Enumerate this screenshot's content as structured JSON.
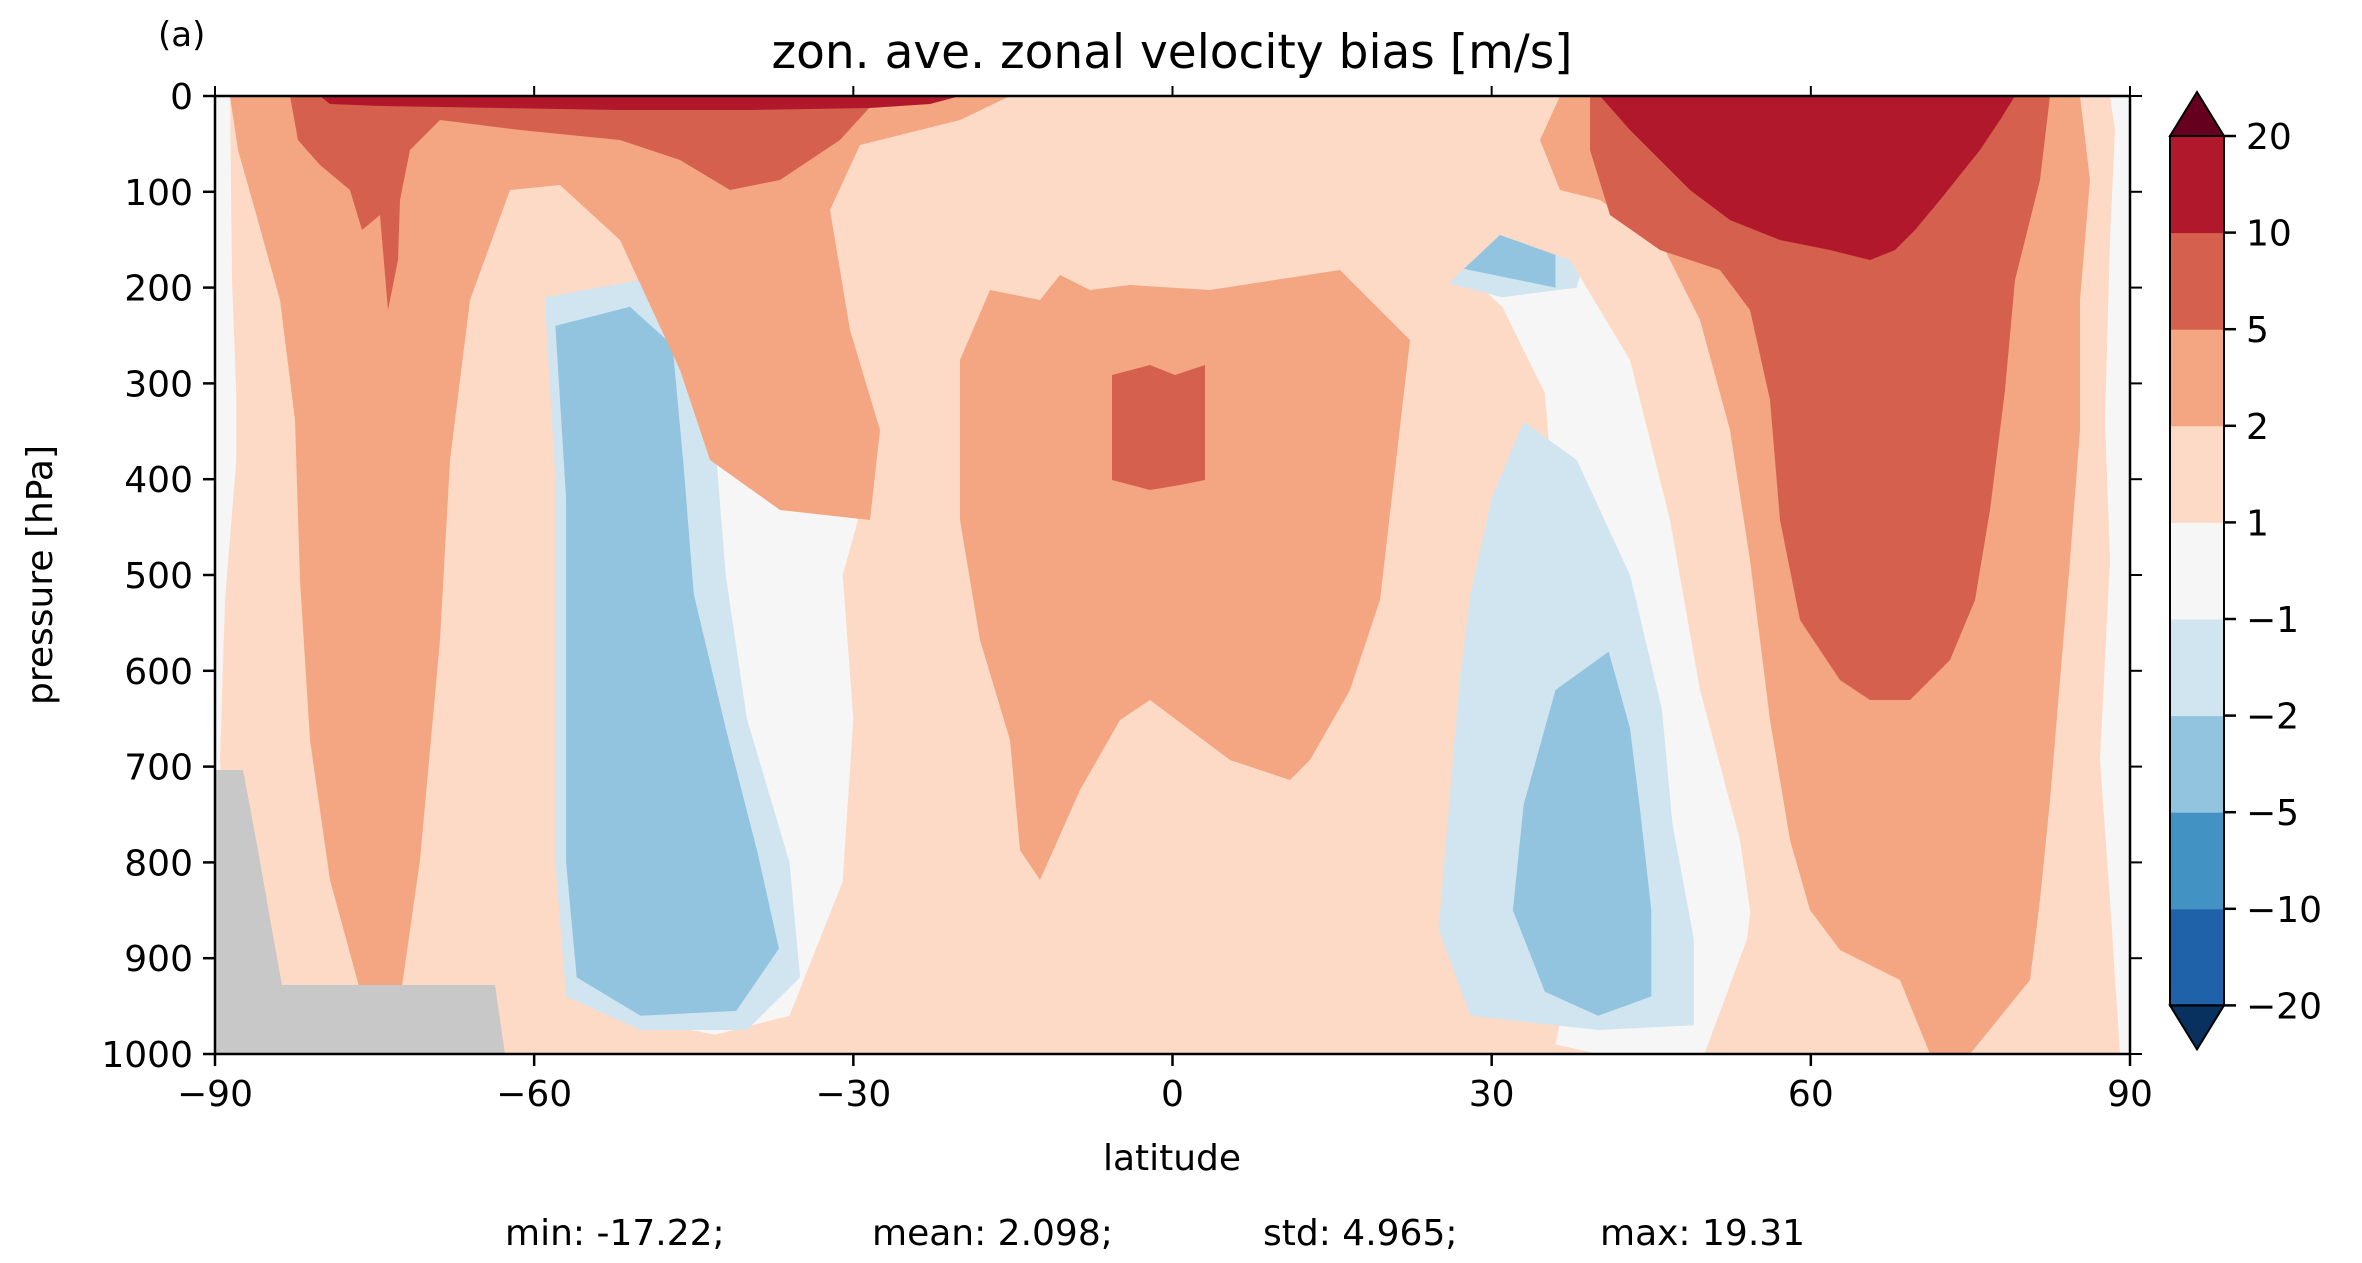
{
  "chart_data": {
    "type": "heatmap",
    "panel_label": "(a)",
    "title": "zon. ave. zonal velocity bias [m/s]",
    "xlabel": "latitude",
    "ylabel": "pressure [hPa]",
    "xlim": [
      -90,
      90
    ],
    "ylim": [
      1000,
      0
    ],
    "xticks": [
      -90,
      -60,
      -30,
      0,
      30,
      60,
      90
    ],
    "xtick_labels": [
      "−90",
      "−60",
      "−30",
      "0",
      "30",
      "60",
      "90"
    ],
    "yticks": [
      0,
      100,
      200,
      300,
      400,
      500,
      600,
      700,
      800,
      900,
      1000
    ],
    "ytick_labels": [
      "0",
      "100",
      "200",
      "300",
      "400",
      "500",
      "600",
      "700",
      "800",
      "900",
      "1000"
    ],
    "colorbar": {
      "levels": [
        -20,
        -10,
        -5,
        -2,
        -1,
        1,
        2,
        5,
        10,
        20
      ],
      "tick_labels": [
        "−20",
        "−10",
        "−5",
        "−2",
        "−1",
        "1",
        "2",
        "5",
        "10",
        "20"
      ],
      "colors": [
        "#1f62aa",
        "#4392c4",
        "#92c4df",
        "#d0e5f0",
        "#f6f6f6",
        "#fddac6",
        "#f4a581",
        "#d5604d",
        "#b2182b"
      ],
      "extend_low_color": "#083160",
      "extend_high_color": "#66001f"
    },
    "regions": [
      {
        "level": 1,
        "points": [
          [
            -85,
            0
          ],
          [
            85,
            0
          ],
          [
            88,
            130
          ],
          [
            85,
            600
          ],
          [
            83,
            1000
          ],
          [
            -83,
            1000
          ],
          [
            -88,
            600
          ],
          [
            -88,
            120
          ]
        ]
      },
      {
        "level": 0,
        "points": [
          [
            -7,
            25
          ],
          [
            -13,
            45
          ],
          [
            -24,
            60
          ],
          [
            -34,
            95
          ],
          [
            -40,
            160
          ],
          [
            -44,
            240
          ],
          [
            -48,
            340
          ],
          [
            -52,
            480
          ],
          [
            -55,
            620
          ],
          [
            -56,
            760
          ],
          [
            -55,
            890
          ],
          [
            -52,
            960
          ],
          [
            -43,
            980
          ],
          [
            -36,
            960
          ],
          [
            -31,
            820
          ],
          [
            -30,
            650
          ],
          [
            -31,
            500
          ],
          [
            -28,
            380
          ],
          [
            -24,
            280
          ],
          [
            -18,
            170
          ],
          [
            -8,
            105
          ],
          [
            2,
            100
          ],
          [
            12,
            110
          ],
          [
            24,
            150
          ],
          [
            31,
            220
          ],
          [
            35,
            310
          ],
          [
            36,
            450
          ],
          [
            37,
            580
          ],
          [
            38,
            730
          ],
          [
            38,
            880
          ],
          [
            36,
            990
          ],
          [
            40,
            1000
          ],
          [
            50,
            1000
          ],
          [
            54,
            880
          ],
          [
            56,
            700
          ],
          [
            55,
            520
          ],
          [
            52,
            380
          ],
          [
            47,
            260
          ],
          [
            42,
            160
          ],
          [
            32,
            85
          ],
          [
            18,
            45
          ],
          [
            9,
            25
          ]
        ]
      },
      {
        "level": -1,
        "points": [
          [
            -59,
            210
          ],
          [
            -58,
            400
          ],
          [
            -58,
            620
          ],
          [
            -58,
            800
          ],
          [
            -57,
            940
          ],
          [
            -50,
            975
          ],
          [
            -40,
            975
          ],
          [
            -35,
            920
          ],
          [
            -36,
            800
          ],
          [
            -40,
            650
          ],
          [
            -42,
            500
          ],
          [
            -43,
            360
          ],
          [
            -45,
            240
          ],
          [
            -49,
            190
          ]
        ]
      },
      {
        "level": -2,
        "points": [
          [
            -58,
            240
          ],
          [
            -57,
            420
          ],
          [
            -57,
            620
          ],
          [
            -57,
            800
          ],
          [
            -56,
            920
          ],
          [
            -50,
            960
          ],
          [
            -41,
            955
          ],
          [
            -37,
            890
          ],
          [
            -39,
            790
          ],
          [
            -42,
            660
          ],
          [
            -45,
            520
          ],
          [
            -46,
            380
          ],
          [
            -47,
            260
          ],
          [
            -51,
            220
          ]
        ]
      },
      {
        "level": -1,
        "points": [
          [
            27,
            610
          ],
          [
            26,
            740
          ],
          [
            25,
            870
          ],
          [
            28,
            960
          ],
          [
            40,
            975
          ],
          [
            49,
            970
          ],
          [
            49,
            880
          ],
          [
            47,
            760
          ],
          [
            46,
            640
          ],
          [
            43,
            500
          ],
          [
            38,
            380
          ],
          [
            33,
            340
          ],
          [
            30,
            420
          ],
          [
            28,
            520
          ]
        ]
      },
      {
        "level": -2,
        "points": [
          [
            36,
            620
          ],
          [
            33,
            740
          ],
          [
            32,
            850
          ],
          [
            35,
            935
          ],
          [
            40,
            960
          ],
          [
            45,
            940
          ],
          [
            45,
            850
          ],
          [
            44,
            750
          ],
          [
            43,
            660
          ],
          [
            41,
            580
          ]
        ]
      },
      {
        "level": -1,
        "points": [
          [
            -27,
            120
          ],
          [
            -27,
            160
          ],
          [
            -23,
            170
          ],
          [
            -12,
            155
          ],
          [
            0,
            160
          ],
          [
            12,
            175
          ],
          [
            24,
            190
          ],
          [
            31,
            210
          ],
          [
            38,
            200
          ],
          [
            39,
            160
          ],
          [
            33,
            110
          ],
          [
            20,
            65
          ],
          [
            8,
            25
          ],
          [
            -8,
            25
          ],
          [
            -20,
            65
          ],
          [
            -26,
            95
          ]
        ]
      },
      {
        "level": -2,
        "points": [
          [
            -24,
            120
          ],
          [
            -24,
            150
          ],
          [
            -15,
            145
          ],
          [
            0,
            140
          ],
          [
            12,
            150
          ],
          [
            25,
            175
          ],
          [
            36,
            200
          ],
          [
            36,
            155
          ],
          [
            30,
            110
          ],
          [
            20,
            60
          ],
          [
            8,
            30
          ],
          [
            -8,
            30
          ],
          [
            -18,
            65
          ],
          [
            -23,
            95
          ]
        ]
      },
      {
        "level": -3,
        "points": [
          [
            -13,
            50
          ],
          [
            -16,
            80
          ],
          [
            -6,
            95
          ],
          [
            8,
            95
          ],
          [
            16,
            85
          ],
          [
            16,
            65
          ],
          [
            10,
            45
          ],
          [
            0,
            35
          ],
          [
            -8,
            40
          ]
        ]
      },
      {
        "level": -4,
        "points": [
          [
            -10,
            55
          ],
          [
            -10,
            75
          ],
          [
            0,
            85
          ],
          [
            8,
            75
          ],
          [
            10,
            60
          ],
          [
            3,
            50
          ],
          [
            -5,
            48
          ]
        ]
      }
    ],
    "stats": {
      "min": "min: -17.22;",
      "mean": "mean: 2.098;",
      "std": "std: 4.965;",
      "max": "max: 19.31"
    }
  }
}
